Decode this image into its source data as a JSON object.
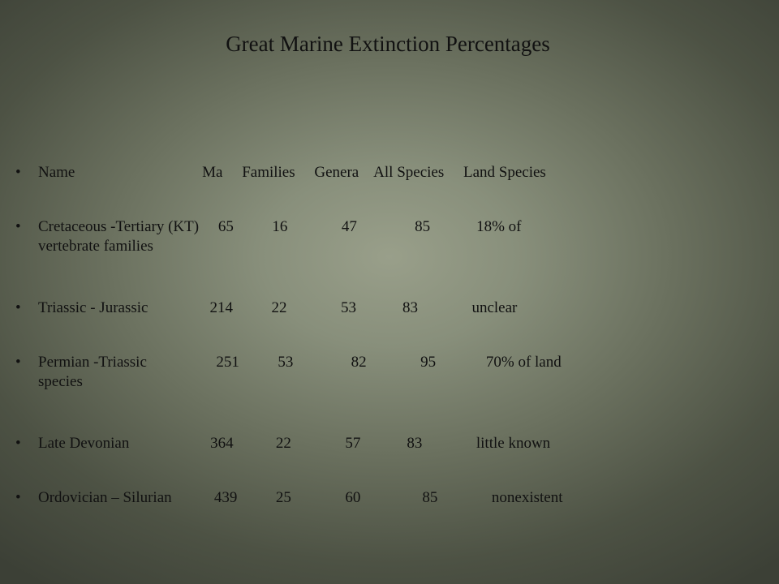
{
  "slide": {
    "title": "Great Marine Extinction Percentages",
    "bullet_char": "•",
    "rows": [
      {
        "line1": "Name                                 Ma     Families     Genera    All Species     Land Species",
        "line2": ""
      },
      {
        "line1": "Cretaceous -Tertiary (KT)     65          16              47               85            18% of",
        "line2": "vertebrate families"
      },
      {
        "line1": "Triassic - Jurassic                214          22              53            83              unclear",
        "line2": ""
      },
      {
        "line1": "Permian -Triassic                  251          53               82              95             70% of land",
        "line2": "species"
      },
      {
        "line1": "Late Devonian                     364           22              57            83              little known",
        "line2": ""
      },
      {
        "line1": "Ordovician – Silurian           439          25              60                85              nonexistent",
        "line2": ""
      }
    ]
  }
}
